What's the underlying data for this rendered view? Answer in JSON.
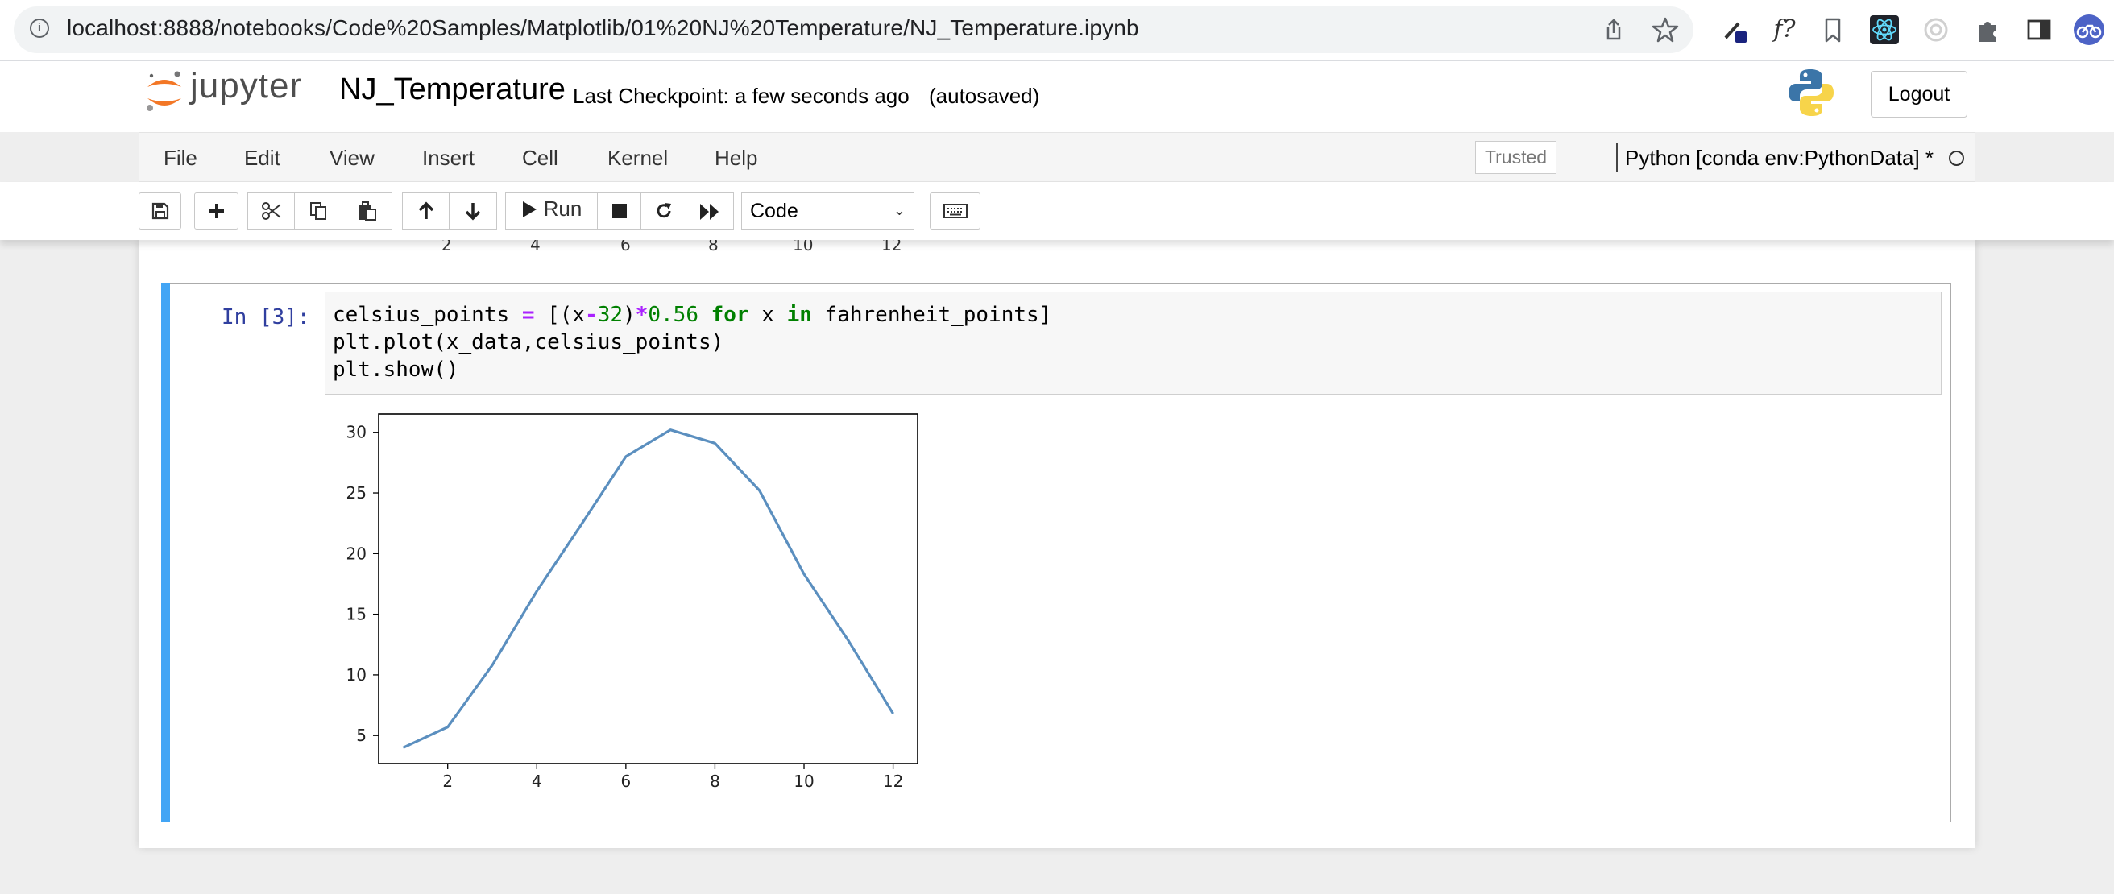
{
  "browser": {
    "url": "localhost:8888/notebooks/Code%20Samples/Matplotlib/01%20NJ%20Temperature/NJ_Temperature.ipynb",
    "extension_f_label": "f?"
  },
  "header": {
    "logo_text": "jupyter",
    "notebook_name": "NJ_Temperature",
    "checkpoint": "Last Checkpoint: a few seconds ago",
    "autosave": "(autosaved)",
    "logout_label": "Logout"
  },
  "menubar": {
    "items": [
      "File",
      "Edit",
      "View",
      "Insert",
      "Cell",
      "Kernel",
      "Help"
    ],
    "trusted_label": "Trusted",
    "kernel_name": "Python [conda env:PythonData] *"
  },
  "toolbar": {
    "run_label": "Run",
    "cell_type": "Code"
  },
  "previous_output": {
    "x_ticks": [
      "2",
      "4",
      "6",
      "8",
      "10",
      "12"
    ]
  },
  "cell": {
    "prompt": "In [3]:",
    "code_lines": [
      "celsius_points = [(x-32)*0.56 for x in fahrenheit_points]",
      "plt.plot(x_data,celsius_points)",
      "plt.show()"
    ]
  },
  "chart_data": {
    "type": "line",
    "x": [
      1,
      2,
      3,
      4,
      5,
      6,
      7,
      8,
      9,
      10,
      11,
      12
    ],
    "series": [
      {
        "values": [
          4.0,
          5.7,
          10.8,
          16.9,
          22.4,
          28.0,
          30.2,
          29.1,
          25.2,
          18.3,
          12.8,
          6.8
        ],
        "color": "#5b8fbf"
      }
    ],
    "xticks": [
      2,
      4,
      6,
      8,
      10,
      12
    ],
    "yticks": [
      5,
      10,
      15,
      20,
      25,
      30
    ],
    "xlim": [
      0.45,
      12.55
    ],
    "ylim": [
      2.69,
      31.51
    ],
    "grid": false,
    "title": "",
    "xlabel": "",
    "ylabel": ""
  }
}
